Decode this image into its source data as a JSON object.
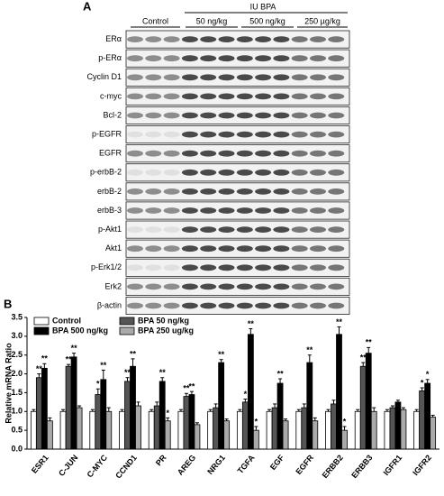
{
  "panel_a": {
    "label": "A",
    "treatment": "IU BPA",
    "groups": [
      "Control",
      "50 ng/kg",
      "500 ng/kg",
      "250 µg/kg"
    ],
    "rows": [
      "ERα",
      "p-ERα",
      "Cyclin D1",
      "c-myc",
      "Bcl-2",
      "p-EGFR",
      "EGFR",
      "p-erbB-2",
      "erbB-2",
      "erbB-3",
      "p-Akt1",
      "Akt1",
      "p-Erk1/2",
      "Erk2",
      "β-actin"
    ]
  },
  "chart_data": {
    "type": "bar",
    "panel_label": "B",
    "y_label": "Relative mRNA Ratio",
    "categories": [
      "ESR1",
      "C-JUN",
      "C-MYC",
      "CCND1",
      "PR",
      "AREG",
      "NRG1",
      "TGFA",
      "EGF",
      "EGFR",
      "ERBB2",
      "ERBB3",
      "IGFR1",
      "IGFR2"
    ],
    "series": [
      {
        "name": "Control",
        "color": "#ffffff",
        "values": [
          1.0,
          1.0,
          1.0,
          1.0,
          1.0,
          1.0,
          1.0,
          1.0,
          1.0,
          1.0,
          1.0,
          1.0,
          1.0,
          1.0
        ],
        "errors": [
          0.05,
          0.05,
          0.05,
          0.05,
          0.05,
          0.05,
          0.05,
          0.05,
          0.05,
          0.05,
          0.05,
          0.05,
          0.05,
          0.05
        ],
        "sig": [
          null,
          null,
          null,
          null,
          null,
          null,
          null,
          null,
          null,
          null,
          null,
          null,
          null,
          null
        ]
      },
      {
        "name": "BPA 50 ng/kg",
        "color": "#555555",
        "values": [
          1.9,
          2.2,
          1.45,
          1.8,
          1.15,
          1.4,
          1.1,
          1.25,
          1.1,
          1.1,
          1.2,
          2.2,
          1.1,
          1.55
        ],
        "errors": [
          0.1,
          0.05,
          0.15,
          0.1,
          0.1,
          0.08,
          0.1,
          0.08,
          0.1,
          0.1,
          0.1,
          0.1,
          0.05,
          0.08
        ],
        "sig": [
          "**",
          "**",
          "*",
          "**",
          null,
          "**",
          null,
          "*",
          null,
          null,
          null,
          "**",
          null,
          "*"
        ]
      },
      {
        "name": "BPA 500 ng/kg",
        "color": "#000000",
        "values": [
          2.15,
          2.45,
          1.85,
          2.2,
          1.8,
          1.45,
          2.3,
          3.05,
          1.75,
          2.3,
          3.05,
          2.55,
          1.25,
          1.75
        ],
        "errors": [
          0.12,
          0.1,
          0.25,
          0.2,
          0.1,
          0.08,
          0.08,
          0.15,
          0.12,
          0.2,
          0.2,
          0.15,
          0.05,
          0.1
        ],
        "sig": [
          "**",
          "**",
          "**",
          "**",
          "**",
          "**",
          "**",
          "**",
          "**",
          "**",
          "**",
          "**",
          null,
          "*"
        ]
      },
      {
        "name": "BPA 250 ug/kg",
        "color": "#aaaaaa",
        "values": [
          0.75,
          1.1,
          1.0,
          1.15,
          0.75,
          0.65,
          0.75,
          0.5,
          0.75,
          0.75,
          0.5,
          1.0,
          1.05,
          0.85
        ],
        "errors": [
          0.08,
          0.05,
          0.1,
          0.1,
          0.08,
          0.05,
          0.05,
          0.1,
          0.05,
          0.08,
          0.1,
          0.1,
          0.05,
          0.05
        ],
        "sig": [
          null,
          null,
          null,
          null,
          "*",
          null,
          null,
          "*",
          null,
          null,
          "*",
          null,
          null,
          null
        ]
      }
    ],
    "ylim": [
      0,
      3.5
    ],
    "yticks": [
      {
        "value": 0,
        "label": "0.0"
      },
      0.5,
      {
        "value": 1,
        "label": "1.0"
      },
      1.5,
      {
        "value": 2,
        "label": "2.0"
      },
      2.5,
      {
        "value": 3,
        "label": "3.0"
      },
      3.5
    ],
    "legend": "upper left"
  }
}
